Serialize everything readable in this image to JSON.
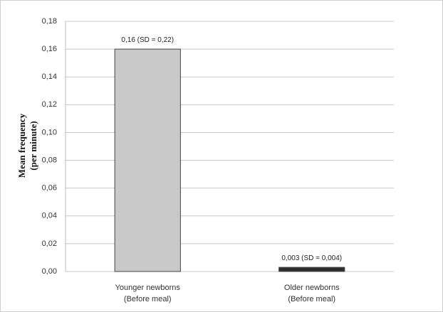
{
  "chart_data": {
    "type": "bar",
    "y_label": [
      "Mean frequency",
      "(per minute)"
    ],
    "categories": [
      [
        "Younger newborns",
        "(Before meal)"
      ],
      [
        "Older newborns",
        "(Before meal)"
      ]
    ],
    "values": [
      0.16,
      0.003
    ],
    "value_labels": [
      "0,16 (SD = 0,22)",
      "0,003 (SD = 0,004)"
    ],
    "colors": [
      "#c9c9c9",
      "#2e2e2e"
    ],
    "ylim": [
      0,
      0.18
    ],
    "yticks": [
      {
        "value": 0,
        "label": "0,00"
      },
      {
        "value": 0.02,
        "label": "0,02"
      },
      {
        "value": 0.04,
        "label": "0,04"
      },
      {
        "value": 0.06,
        "label": "0,06"
      },
      {
        "value": 0.08,
        "label": "0,08"
      },
      {
        "value": 0.1,
        "label": "0,10"
      },
      {
        "value": 0.12,
        "label": "0,12"
      },
      {
        "value": 0.14,
        "label": "0,14"
      },
      {
        "value": 0.16,
        "label": "0,16"
      },
      {
        "value": 0.18,
        "label": "0,18"
      }
    ],
    "grid": true
  }
}
